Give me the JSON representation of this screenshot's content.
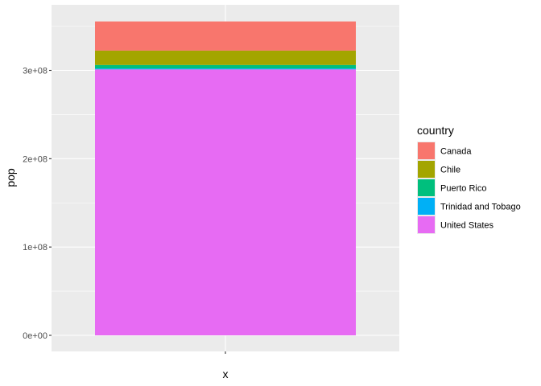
{
  "chart_data": {
    "type": "bar",
    "stacked": true,
    "categories": [
      ""
    ],
    "xlabel": "x",
    "ylabel": "pop",
    "ylim": [
      0,
      356000000
    ],
    "yticks": [
      0,
      100000000,
      200000000,
      300000000
    ],
    "ytick_labels": [
      "0e+00",
      "1e+08",
      "2e+08",
      "3e+08"
    ],
    "grid": true,
    "legend": {
      "title": "country",
      "placement": "right"
    },
    "series": [
      {
        "name": "Canada",
        "values": [
          33000000
        ],
        "color": "#F8766D"
      },
      {
        "name": "Chile",
        "values": [
          16300000
        ],
        "color": "#A3A500"
      },
      {
        "name": "Puerto Rico",
        "values": [
          3900000
        ],
        "color": "#00BF7D"
      },
      {
        "name": "Trinidad and Tobago",
        "values": [
          1100000
        ],
        "color": "#00B0F6"
      },
      {
        "name": "United States",
        "values": [
          301100000
        ],
        "color": "#E76BF3"
      }
    ]
  }
}
